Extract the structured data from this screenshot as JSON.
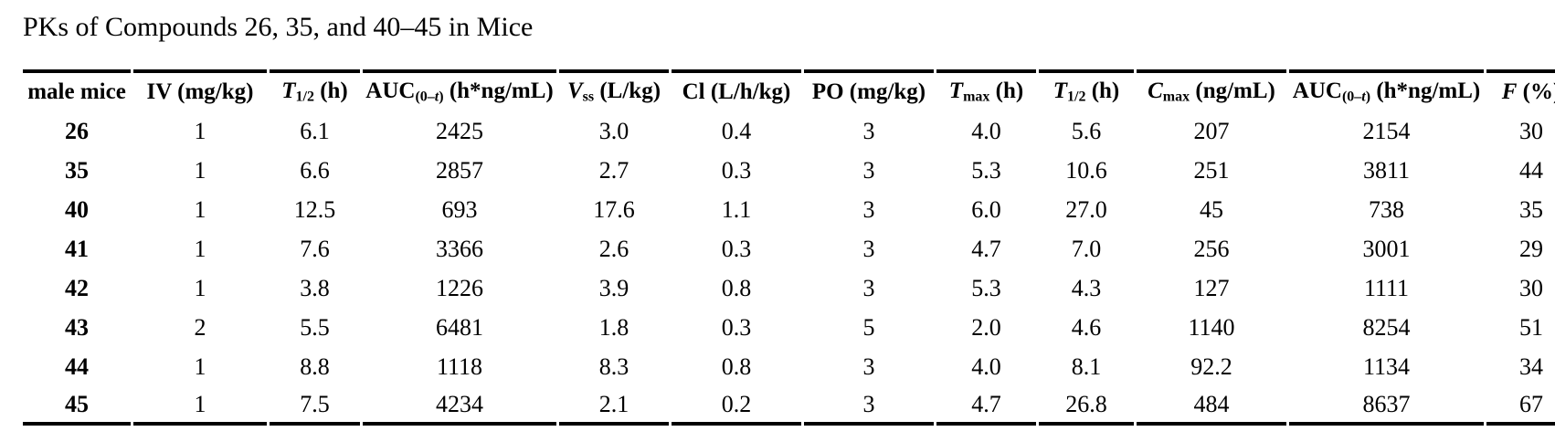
{
  "title": "PKs of Compounds 26, 35, and 40–45 in Mice",
  "table": {
    "columns": [
      {
        "id": "male-mice",
        "parts": [
          {
            "t": "male mice"
          }
        ]
      },
      {
        "id": "iv-dose",
        "parts": [
          {
            "t": "IV (mg/kg)"
          }
        ]
      },
      {
        "id": "iv-t-half",
        "parts": [
          {
            "t": "T",
            "i": 1
          },
          {
            "t": "1/2",
            "s": 1
          },
          {
            "t": " (h)"
          }
        ]
      },
      {
        "id": "iv-auc",
        "parts": [
          {
            "t": "AUC"
          },
          {
            "t": "(0–",
            "s": 1
          },
          {
            "t": "t",
            "s": 1,
            "i": 1
          },
          {
            "t": ")",
            "s": 1
          },
          {
            "t": " (h*ng/mL)"
          }
        ]
      },
      {
        "id": "vss",
        "parts": [
          {
            "t": "V",
            "i": 1
          },
          {
            "t": "ss",
            "s": 1
          },
          {
            "t": " (L/kg)"
          }
        ]
      },
      {
        "id": "clearance",
        "parts": [
          {
            "t": "Cl (L/h/kg)"
          }
        ]
      },
      {
        "id": "po-dose",
        "parts": [
          {
            "t": "PO (mg/kg)"
          }
        ]
      },
      {
        "id": "t-max",
        "parts": [
          {
            "t": "T",
            "i": 1
          },
          {
            "t": "max",
            "s": 1
          },
          {
            "t": " (h)"
          }
        ]
      },
      {
        "id": "po-t-half",
        "parts": [
          {
            "t": "T",
            "i": 1
          },
          {
            "t": "1/2",
            "s": 1
          },
          {
            "t": " (h)"
          }
        ]
      },
      {
        "id": "c-max",
        "parts": [
          {
            "t": "C",
            "i": 1
          },
          {
            "t": "max",
            "s": 1
          },
          {
            "t": " (ng/mL)"
          }
        ]
      },
      {
        "id": "po-auc",
        "parts": [
          {
            "t": "AUC"
          },
          {
            "t": "(0–",
            "s": 1
          },
          {
            "t": "t",
            "s": 1,
            "i": 1
          },
          {
            "t": ")",
            "s": 1
          },
          {
            "t": " (h*ng/mL)"
          }
        ]
      },
      {
        "id": "f-percent",
        "parts": [
          {
            "t": "F",
            "i": 1
          },
          {
            "t": " (%)"
          }
        ]
      }
    ],
    "rows": [
      {
        "compound": "26",
        "values": [
          "1",
          "6.1",
          "2425",
          "3.0",
          "0.4",
          "3",
          "4.0",
          "5.6",
          "207",
          "2154",
          "30"
        ]
      },
      {
        "compound": "35",
        "values": [
          "1",
          "6.6",
          "2857",
          "2.7",
          "0.3",
          "3",
          "5.3",
          "10.6",
          "251",
          "3811",
          "44"
        ]
      },
      {
        "compound": "40",
        "values": [
          "1",
          "12.5",
          "693",
          "17.6",
          "1.1",
          "3",
          "6.0",
          "27.0",
          "45",
          "738",
          "35"
        ]
      },
      {
        "compound": "41",
        "values": [
          "1",
          "7.6",
          "3366",
          "2.6",
          "0.3",
          "3",
          "4.7",
          "7.0",
          "256",
          "3001",
          "29"
        ]
      },
      {
        "compound": "42",
        "values": [
          "1",
          "3.8",
          "1226",
          "3.9",
          "0.8",
          "3",
          "5.3",
          "4.3",
          "127",
          "1111",
          "30"
        ]
      },
      {
        "compound": "43",
        "values": [
          "2",
          "5.5",
          "6481",
          "1.8",
          "0.3",
          "5",
          "2.0",
          "4.6",
          "1140",
          "8254",
          "51"
        ]
      },
      {
        "compound": "44",
        "values": [
          "1",
          "8.8",
          "1118",
          "8.3",
          "0.8",
          "3",
          "4.0",
          "8.1",
          "92.2",
          "1134",
          "34"
        ]
      },
      {
        "compound": "45",
        "values": [
          "1",
          "7.5",
          "4234",
          "2.1",
          "0.2",
          "3",
          "4.7",
          "26.8",
          "484",
          "8637",
          "67"
        ]
      }
    ]
  }
}
